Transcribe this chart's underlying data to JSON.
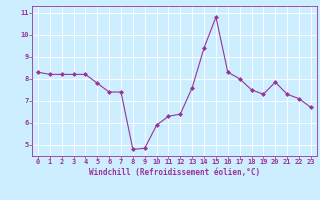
{
  "x": [
    0,
    1,
    2,
    3,
    4,
    5,
    6,
    7,
    8,
    9,
    10,
    11,
    12,
    13,
    14,
    15,
    16,
    17,
    18,
    19,
    20,
    21,
    22,
    23
  ],
  "y": [
    8.3,
    8.2,
    8.2,
    8.2,
    8.2,
    7.8,
    7.4,
    7.4,
    4.8,
    4.85,
    5.9,
    6.3,
    6.4,
    7.6,
    9.4,
    10.8,
    8.3,
    8.0,
    7.5,
    7.3,
    7.85,
    7.3,
    7.1,
    6.7
  ],
  "line_color": "#993399",
  "marker": "D",
  "marker_size": 2.0,
  "bg_color": "#cceeff",
  "grid_color": "#ffffff",
  "xlabel": "Windchill (Refroidissement éolien,°C)",
  "ylim": [
    4.5,
    11.3
  ],
  "xlim": [
    -0.5,
    23.5
  ],
  "yticks": [
    5,
    6,
    7,
    8,
    9,
    10,
    11
  ],
  "xticks": [
    0,
    1,
    2,
    3,
    4,
    5,
    6,
    7,
    8,
    9,
    10,
    11,
    12,
    13,
    14,
    15,
    16,
    17,
    18,
    19,
    20,
    21,
    22,
    23
  ],
  "tick_color": "#993399",
  "label_color": "#993399",
  "axis_color": "#993399",
  "tick_fontsize": 5.0,
  "xlabel_fontsize": 5.5,
  "linewidth": 0.8,
  "spine_linewidth": 0.6
}
